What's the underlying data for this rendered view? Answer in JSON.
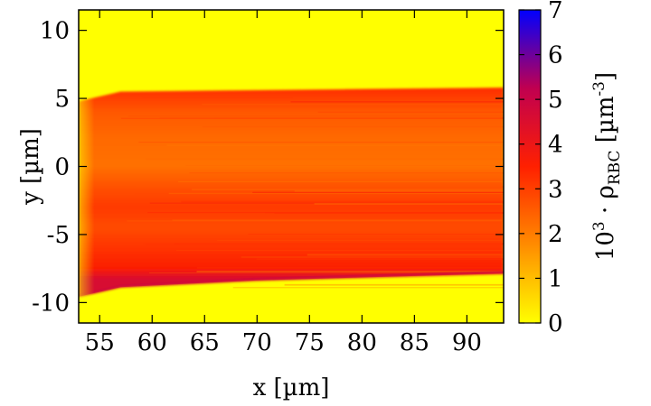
{
  "chart_data": {
    "type": "heatmap",
    "title": "",
    "xlabel": "x [µm]",
    "ylabel": "y [µm]",
    "colorbar_label": {
      "base": "10",
      "exp": "3",
      "dot": " · ",
      "rho": "ρ",
      "sub": "RBC",
      "unit_open": " [µm",
      "unit_exp": "-3",
      "unit_close": "]"
    },
    "xlim": [
      53,
      93.5
    ],
    "ylim": [
      -11.5,
      11.5
    ],
    "x_ticks": [
      55,
      60,
      65,
      70,
      75,
      80,
      85,
      90
    ],
    "x_tick_labels": [
      "55",
      "60",
      "65",
      "70",
      "75",
      "80",
      "85",
      "90"
    ],
    "y_ticks": [
      10,
      5,
      0,
      -5,
      -10
    ],
    "y_tick_labels": [
      "10",
      "5",
      "0",
      "-5",
      "-10"
    ],
    "colorbar_range": [
      0,
      7
    ],
    "colorbar_ticks": [
      0,
      1,
      2,
      3,
      4,
      5,
      6,
      7
    ],
    "colorbar_tick_labels": [
      "0",
      "1",
      "2",
      "3",
      "4",
      "5",
      "6",
      "7"
    ],
    "colormap": [
      "#ffff00",
      "#ff8c00",
      "#ff2000",
      "#c00050",
      "#0000ff"
    ],
    "background_value": 0,
    "band_upper_edge": [
      {
        "x": 53,
        "y": 4.8
      },
      {
        "x": 57,
        "y": 5.5
      },
      {
        "x": 93.5,
        "y": 5.8
      }
    ],
    "band_lower_edge": [
      {
        "x": 53,
        "y": -9.6
      },
      {
        "x": 57,
        "y": -8.9
      },
      {
        "x": 70,
        "y": -8.4
      },
      {
        "x": 93.5,
        "y": -7.9
      }
    ],
    "band_profile": [
      {
        "y": 5.5,
        "value": 3.2
      },
      {
        "y": 4.0,
        "value": 2.6
      },
      {
        "y": 2.0,
        "value": 2.3
      },
      {
        "y": 0.0,
        "value": 2.2
      },
      {
        "y": -1.5,
        "value": 2.7
      },
      {
        "y": -3.0,
        "value": 3.1
      },
      {
        "y": -4.5,
        "value": 2.8
      },
      {
        "y": -6.0,
        "value": 3.2
      },
      {
        "y": -7.5,
        "value": 3.6
      },
      {
        "y": -8.3,
        "value": 4.6
      }
    ]
  }
}
